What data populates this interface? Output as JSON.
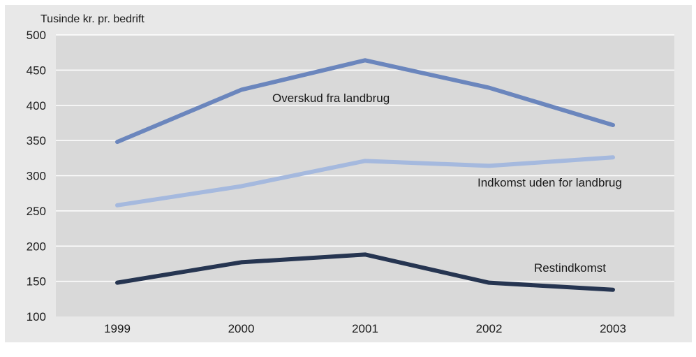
{
  "chart_data": {
    "type": "line",
    "title": "",
    "ylabel": "Tusinde kr. pr. bedrift",
    "xlabel": "",
    "x": [
      "1999",
      "2000",
      "2001",
      "2002",
      "2003"
    ],
    "ylim": [
      100,
      500
    ],
    "yticks": [
      100,
      150,
      200,
      250,
      300,
      350,
      400,
      450,
      500
    ],
    "grid": true,
    "series": [
      {
        "name": "Overskud fra landbrug",
        "values": [
          348,
          422,
          464,
          425,
          372
        ],
        "color": "#6b86bd"
      },
      {
        "name": "Indkomst uden for landbrug",
        "values": [
          258,
          285,
          321,
          314,
          326
        ],
        "color": "#a5b9de"
      },
      {
        "name": "Restindkomst",
        "values": [
          148,
          177,
          188,
          148,
          138
        ],
        "color": "#263551"
      }
    ],
    "colors": {
      "plot_background": "#d9d9d9",
      "gridline": "#ffffff"
    }
  }
}
